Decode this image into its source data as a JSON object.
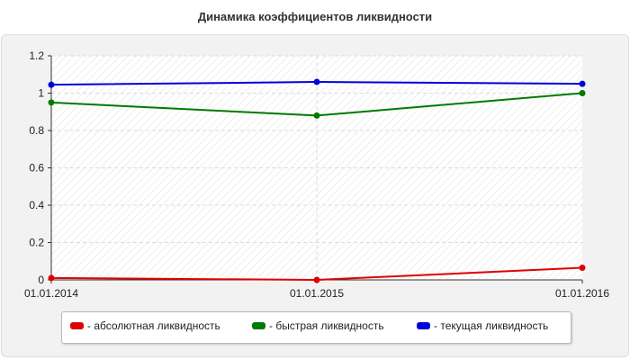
{
  "chart_data": {
    "type": "line",
    "title": "Динамика коэффициентов ликвидности",
    "categories": [
      "01.01.2014",
      "01.01.2015",
      "01.01.2016"
    ],
    "series": [
      {
        "name": "- абсолютная ликвидность",
        "color": "#e00000",
        "values": [
          0.01,
          0.0,
          0.065
        ]
      },
      {
        "name": "- быстрая ликвидность",
        "color": "#007a00",
        "values": [
          0.95,
          0.88,
          1.0
        ]
      },
      {
        "name": "- текущая ликвидность",
        "color": "#0000dd",
        "values": [
          1.045,
          1.06,
          1.05
        ]
      }
    ],
    "yticks": [
      "0",
      "0.2",
      "0.4",
      "0.6",
      "0.8",
      "1",
      "1.2"
    ],
    "ylim": [
      0,
      1.2
    ],
    "grid": true,
    "legend_position": "bottom"
  }
}
